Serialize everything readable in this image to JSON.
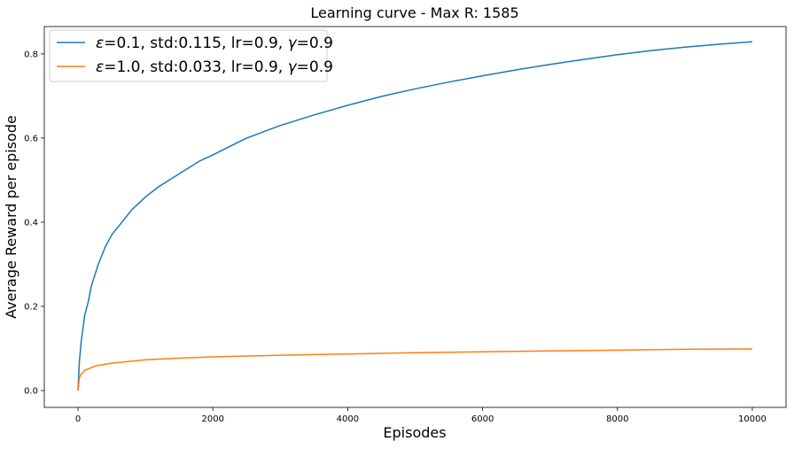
{
  "chart_data": {
    "type": "line",
    "title": "Learning curve - Max R: 1585",
    "xlabel": "Episodes",
    "ylabel": "Average Reward per episode",
    "xlim": [
      -500,
      10500
    ],
    "ylim": [
      -0.04,
      0.865
    ],
    "x_ticks": [
      0,
      2000,
      4000,
      6000,
      8000,
      10000
    ],
    "x_tick_labels": [
      "0",
      "2000",
      "4000",
      "6000",
      "8000",
      "10000"
    ],
    "y_ticks": [
      0.0,
      0.2,
      0.4,
      0.6,
      0.8
    ],
    "y_tick_labels": [
      "0.0",
      "0.2",
      "0.4",
      "0.6",
      "0.8"
    ],
    "grid": false,
    "legend_position": "top-left",
    "series": [
      {
        "name": "ε=0.1, std:0.115, lr=0.9, γ=0.9",
        "legend_prefix": "ε",
        "legend_mid": "=0.1, std:0.115, lr=0.9, ",
        "legend_gamma": "γ",
        "legend_suffix": "=0.9",
        "color": "#1f77b4",
        "x": [
          0,
          20,
          50,
          100,
          150,
          200,
          300,
          400,
          500,
          600,
          800,
          1000,
          1200,
          1500,
          1800,
          2000,
          2500,
          3000,
          3500,
          4000,
          4500,
          5000,
          5500,
          6000,
          6500,
          7000,
          7500,
          8000,
          8500,
          9000,
          9500,
          10000
        ],
        "y": [
          0.0,
          0.07,
          0.12,
          0.18,
          0.21,
          0.25,
          0.3,
          0.34,
          0.37,
          0.39,
          0.43,
          0.46,
          0.485,
          0.515,
          0.545,
          0.56,
          0.6,
          0.63,
          0.655,
          0.678,
          0.699,
          0.717,
          0.733,
          0.748,
          0.762,
          0.775,
          0.787,
          0.798,
          0.808,
          0.816,
          0.823,
          0.829
        ]
      },
      {
        "name": "ε=1.0, std:0.033, lr=0.9, γ=0.9",
        "legend_prefix": "ε",
        "legend_mid": "=1.0, std:0.033, lr=0.9, ",
        "legend_gamma": "γ",
        "legend_suffix": "=0.9",
        "color": "#ff7f0e",
        "x": [
          0,
          20,
          50,
          100,
          200,
          300,
          500,
          800,
          1000,
          1500,
          2000,
          3000,
          4000,
          5000,
          6000,
          7000,
          8000,
          9000,
          10000
        ],
        "y": [
          0.0,
          0.03,
          0.04,
          0.048,
          0.055,
          0.06,
          0.065,
          0.07,
          0.073,
          0.077,
          0.08,
          0.084,
          0.087,
          0.09,
          0.092,
          0.094,
          0.096,
          0.098,
          0.099
        ]
      }
    ]
  }
}
